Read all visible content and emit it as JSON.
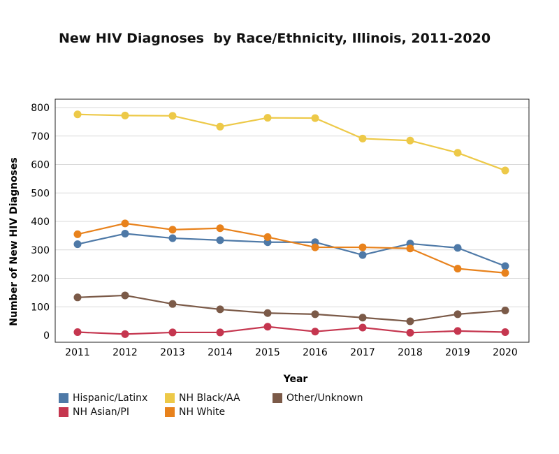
{
  "chart_data": {
    "type": "line",
    "title": "New HIV Diagnoses  by Race/Ethnicity, Illinois, 2011-2020",
    "xlabel": "Year",
    "ylabel": "Number of New HIV Diagnoses",
    "x": [
      "2011",
      "2012",
      "2013",
      "2014",
      "2015",
      "2016",
      "2017",
      "2018",
      "2019",
      "2020"
    ],
    "ylim": [
      0,
      800
    ],
    "yticks": [
      0,
      100,
      200,
      300,
      400,
      500,
      600,
      700,
      800
    ],
    "grid": true,
    "legend_position": "bottom-left",
    "series": [
      {
        "name": "Hispanic/Latinx",
        "color": "#4e79a7",
        "values": [
          320,
          357,
          341,
          334,
          327,
          327,
          282,
          322,
          307,
          243
        ]
      },
      {
        "name": "NH Black/AA",
        "color": "#edc948",
        "values": [
          776,
          772,
          771,
          733,
          764,
          763,
          691,
          684,
          641,
          579
        ]
      },
      {
        "name": "Other/Unknown",
        "color": "#7b5a48",
        "values": [
          133,
          140,
          110,
          91,
          78,
          74,
          62,
          49,
          74,
          87
        ]
      },
      {
        "name": "NH Asian/PI",
        "color": "#c5364f",
        "values": [
          11,
          4,
          10,
          10,
          30,
          13,
          27,
          9,
          15,
          11
        ]
      },
      {
        "name": "NH White",
        "color": "#e8821c",
        "values": [
          355,
          393,
          371,
          376,
          345,
          309,
          309,
          305,
          234,
          219
        ]
      }
    ]
  }
}
